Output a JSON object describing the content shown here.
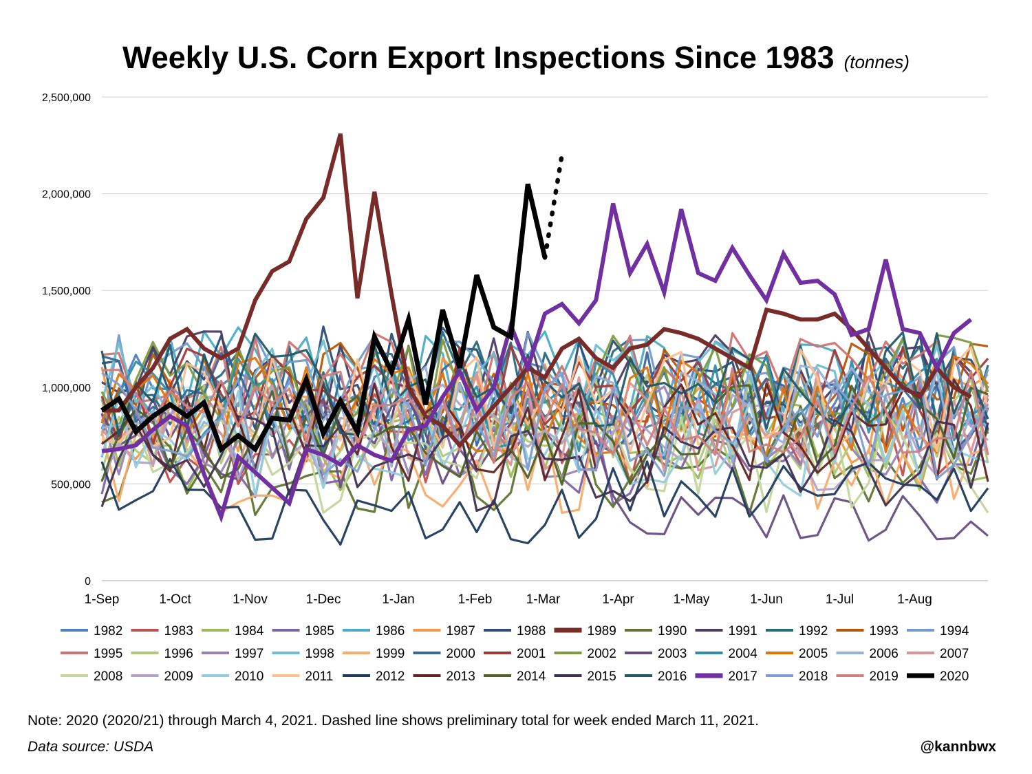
{
  "title": "Weekly U.S. Corn Export Inspections Since 1983",
  "subtitle": "(tonnes)",
  "note": "Note: 2020 (2020/21) through March 4, 2021. Dashed line shows preliminary total for week ended March 11, 2021.",
  "source": "Data source: USDA",
  "handle": "@kannbwx",
  "chart_data": {
    "type": "line",
    "title": "Weekly U.S. Corn Export Inspections Since 1983",
    "ylabel": "",
    "xlabel": "",
    "ylim": [
      0,
      2500000
    ],
    "yticks": [
      0,
      500000,
      1000000,
      1500000,
      2000000,
      2500000
    ],
    "ytick_labels": [
      "0",
      "500,000",
      "1,000,000",
      "1,500,000",
      "2,000,000",
      "2,500,000"
    ],
    "x_unit": "week of marketing year",
    "xlim": [
      1,
      53
    ],
    "xticks": [
      {
        "label": "1-Sep",
        "x": 1
      },
      {
        "label": "1-Oct",
        "x": 5.3
      },
      {
        "label": "1-Nov",
        "x": 9.7
      },
      {
        "label": "1-Dec",
        "x": 14.0
      },
      {
        "label": "1-Jan",
        "x": 18.4
      },
      {
        "label": "1-Feb",
        "x": 22.9
      },
      {
        "label": "1-Mar",
        "x": 26.9
      },
      {
        "label": "1-Apr",
        "x": 31.3
      },
      {
        "label": "1-May",
        "x": 35.6
      },
      {
        "label": "1-Jun",
        "x": 40.0
      },
      {
        "label": "1-Jul",
        "x": 44.3
      },
      {
        "label": "1-Aug",
        "x": 48.7
      }
    ],
    "grid": "horizontal",
    "legend_position": "bottom",
    "series_order": [
      "1982",
      "1983",
      "1984",
      "1985",
      "1986",
      "1987",
      "1988",
      "1989",
      "1990",
      "1991",
      "1992",
      "1993",
      "1994",
      "1995",
      "1996",
      "1997",
      "1998",
      "1999",
      "2000",
      "2001",
      "2002",
      "2003",
      "2004",
      "2005",
      "2006",
      "2007",
      "2008",
      "2009",
      "2010",
      "2011",
      "2012",
      "2013",
      "2014",
      "2015",
      "2016",
      "2017",
      "2018",
      "2019",
      "2020"
    ],
    "series_colors": {
      "1982": "#4f81bd",
      "1983": "#c0504d",
      "1984": "#9bbb59",
      "1985": "#8064a2",
      "1986": "#4bacc6",
      "1987": "#f79646",
      "1988": "#2c4d75",
      "1989": "#772c2a",
      "1990": "#5f7530",
      "1991": "#4d3b62",
      "1992": "#276a7c",
      "1993": "#b65708",
      "1994": "#729aca",
      "1995": "#cd7371",
      "1996": "#afc97a",
      "1997": "#9983b5",
      "1998": "#6fbdd1",
      "1999": "#f9ab6b",
      "2000": "#3a679c",
      "2001": "#9e3b38",
      "2002": "#7d9c40",
      "2003": "#664e82",
      "2004": "#338ea5",
      "2005": "#e2750a",
      "2006": "#95b3d7",
      "2007": "#d99694",
      "2008": "#c3d69b",
      "2009": "#b2a1c7",
      "2010": "#93cddd",
      "2011": "#fac090",
      "2012": "#1f3a5c",
      "2013": "#632423",
      "2014": "#4f6228",
      "2015": "#3f3151",
      "2016": "#215967",
      "2017": "#7030a0",
      "2018": "#7f9fd1",
      "2019": "#d08080",
      "2020": "#000000"
    },
    "highlight_series": [
      {
        "name": "1989",
        "color": "#772c2a",
        "values": [
          880000,
          880000,
          1000000,
          1100000,
          1250000,
          1300000,
          1200000,
          1150000,
          1200000,
          1450000,
          1600000,
          1650000,
          1870000,
          1980000,
          2310000,
          1460000,
          2010000,
          1480000,
          1000000,
          850000,
          800000,
          700000,
          800000,
          900000,
          1000000,
          1100000,
          1050000,
          1200000,
          1250000,
          1150000,
          1100000,
          1200000,
          1220000,
          1300000,
          1280000,
          1250000,
          1200000,
          1150000,
          1100000,
          1400000,
          1380000,
          1350000,
          1350000,
          1380000,
          1300000,
          1200000,
          1100000,
          1000000,
          950000,
          1100000,
          1000000,
          950000
        ]
      },
      {
        "name": "2017",
        "color": "#7030a0",
        "values": [
          670000,
          680000,
          700000,
          780000,
          850000,
          800000,
          550000,
          330000,
          640000,
          560000,
          480000,
          400000,
          680000,
          650000,
          600000,
          700000,
          650000,
          620000,
          780000,
          800000,
          950000,
          1080000,
          880000,
          1000000,
          1320000,
          1100000,
          1380000,
          1430000,
          1330000,
          1450000,
          1950000,
          1590000,
          1740000,
          1490000,
          1920000,
          1590000,
          1550000,
          1720000,
          1580000,
          1450000,
          1690000,
          1540000,
          1550000,
          1480000,
          1270000,
          1300000,
          1660000,
          1300000,
          1280000,
          1100000,
          1280000,
          1350000
        ]
      },
      {
        "name": "2020",
        "color": "#000000",
        "values": [
          880000,
          940000,
          770000,
          850000,
          910000,
          850000,
          920000,
          680000,
          750000,
          680000,
          840000,
          830000,
          1040000,
          760000,
          930000,
          770000,
          1260000,
          1080000,
          1350000,
          910000,
          1400000,
          1100000,
          1580000,
          1310000,
          1260000,
          2050000,
          1670000
        ],
        "dashed_segment": {
          "from": [
            27,
            1670000
          ],
          "to": [
            28,
            2200000
          ],
          "label": "preliminary week ended March 11, 2021"
        }
      }
    ],
    "background_series_note": "Remaining years drawn as dense spaghetti lines, mostly between 200,000 and 1,500,000 tonnes per week."
  }
}
